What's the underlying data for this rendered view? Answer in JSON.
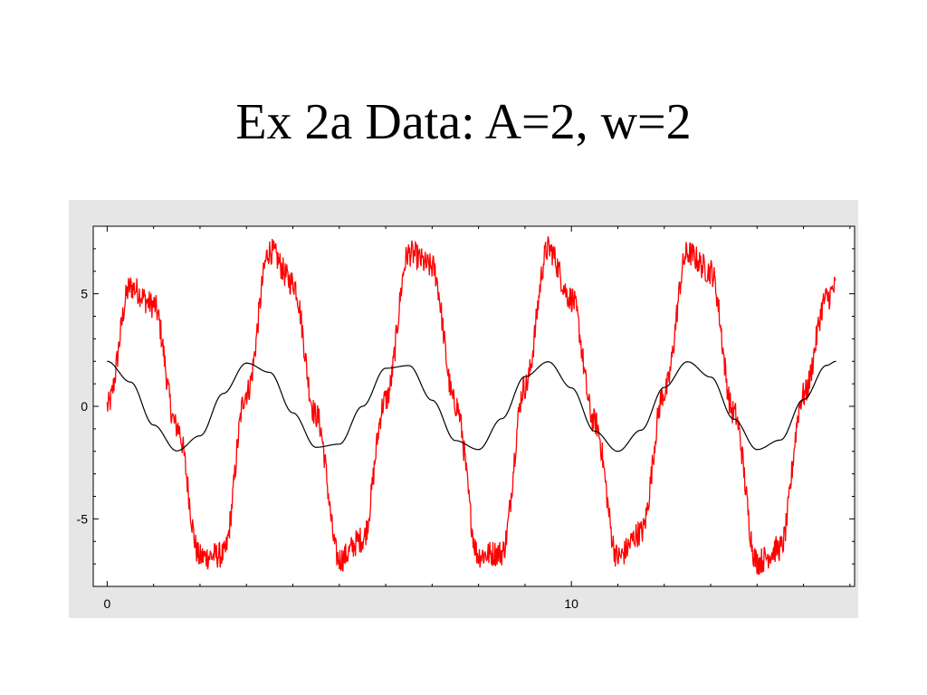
{
  "slide": {
    "title": "Ex 2a Data: A=2, w=2"
  },
  "colors": {
    "plot_background": "#ffffff",
    "frame_background": "#e6e6e6",
    "noisy_series": "#ff0000",
    "clean_series": "#000000"
  },
  "chart_data": {
    "type": "line",
    "title": "",
    "xlabel": "",
    "ylabel": "",
    "xlim": [
      -0.3,
      16.1
    ],
    "ylim": [
      -8,
      8
    ],
    "x_ticks": [
      0,
      10
    ],
    "x_tick_labels": [
      "0",
      "10"
    ],
    "y_ticks": [
      5,
      0,
      -5
    ],
    "y_tick_labels": [
      "5",
      "0",
      "-5"
    ],
    "grid": false,
    "legend": "none",
    "x_range": [
      0,
      15.7
    ],
    "series": [
      {
        "role": "model",
        "color": "#000000",
        "x": [
          0,
          0.5,
          1,
          1.5,
          2,
          2.5,
          3,
          3.5,
          4,
          4.5,
          5,
          5.5,
          6,
          6.5,
          7,
          7.5,
          8,
          8.5,
          9,
          9.5,
          10,
          10.5,
          11,
          11.5,
          12,
          12.5,
          13,
          13.5,
          14,
          14.5,
          15,
          15.5,
          15.7
        ],
        "y": [
          2,
          1.08,
          -0.83,
          -1.98,
          -1.31,
          0.57,
          1.92,
          1.51,
          -0.29,
          -1.82,
          -1.68,
          0,
          1.69,
          1.81,
          0.27,
          -1.52,
          -1.92,
          -0.55,
          1.32,
          1.98,
          0.82,
          -1.1,
          -2,
          -1.06,
          0.84,
          1.98,
          1.3,
          -0.57,
          -1.92,
          -1.5,
          0.3,
          1.82,
          2
        ]
      },
      {
        "role": "noisy-data",
        "color": "#ff0000",
        "x": [
          0,
          0.5,
          1,
          1.5,
          2,
          2.5,
          3,
          3.5,
          4,
          4.5,
          5,
          5.5,
          6,
          6.5,
          7,
          7.5,
          8,
          8.5,
          9,
          9.5,
          10,
          10.5,
          11,
          11.5,
          12,
          12.5,
          13,
          13.5,
          14,
          14.5,
          15,
          15.5,
          15.7
        ],
        "y": [
          0,
          5.3,
          4.5,
          -0.9,
          -6.7,
          -6.6,
          0.6,
          6.9,
          5.5,
          -0.4,
          -6.8,
          -5.9,
          0.3,
          6.8,
          6.2,
          0.1,
          -6.6,
          -6.5,
          0.9,
          7.0,
          4.8,
          -0.7,
          -6.7,
          -5.6,
          0.6,
          6.8,
          6.0,
          -0.3,
          -6.9,
          -6.3,
          0.5,
          4.8,
          5.3
        ],
        "noise_amplitude": 0.6
      }
    ]
  }
}
